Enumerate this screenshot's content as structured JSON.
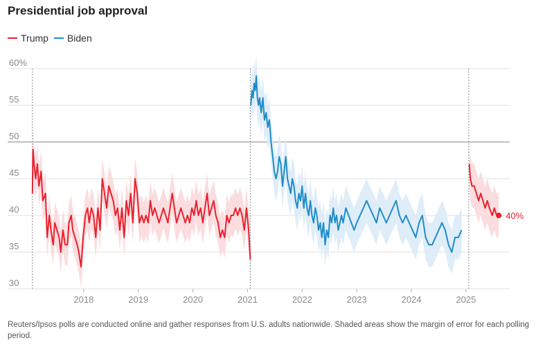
{
  "chart_data": {
    "type": "line",
    "title": "Presidential job approval",
    "xlabel": "",
    "ylabel": "",
    "xlim": [
      2017.05,
      2025.8
    ],
    "ylim": [
      30,
      60
    ],
    "x_ticks": [
      2018,
      2019,
      2020,
      2021,
      2022,
      2023,
      2024,
      2025
    ],
    "x_tick_labels": [
      "2018",
      "2019",
      "2020",
      "2021",
      "2022",
      "2023",
      "2024",
      "2025"
    ],
    "y_ticks": [
      30,
      35,
      40,
      45,
      50,
      55,
      60
    ],
    "y_tick_labels": [
      "30",
      "35",
      "40",
      "45",
      "50",
      "55",
      "60%"
    ],
    "reference_lines": {
      "dashed_x": [
        2017.06,
        2021.05,
        2025.05
      ],
      "solid_y": [
        50
      ]
    },
    "grid": true,
    "legend_position": "top-left",
    "series": [
      {
        "name": "Trump",
        "color": "#e8212f",
        "band_color": "#fbd9dc",
        "margin": 2.8,
        "points": [
          [
            2017.06,
            43
          ],
          [
            2017.07,
            49
          ],
          [
            2017.09,
            47
          ],
          [
            2017.12,
            45
          ],
          [
            2017.15,
            47
          ],
          [
            2017.18,
            44
          ],
          [
            2017.22,
            46
          ],
          [
            2017.25,
            42
          ],
          [
            2017.3,
            43
          ],
          [
            2017.33,
            37
          ],
          [
            2017.37,
            40
          ],
          [
            2017.4,
            38
          ],
          [
            2017.44,
            36
          ],
          [
            2017.47,
            39
          ],
          [
            2017.51,
            38
          ],
          [
            2017.55,
            37
          ],
          [
            2017.58,
            35
          ],
          [
            2017.62,
            38
          ],
          [
            2017.66,
            36
          ],
          [
            2017.7,
            36
          ],
          [
            2017.73,
            39
          ],
          [
            2017.77,
            40
          ],
          [
            2017.8,
            38
          ],
          [
            2017.84,
            37
          ],
          [
            2017.88,
            36
          ],
          [
            2017.91,
            35
          ],
          [
            2017.95,
            33
          ],
          [
            2017.99,
            37
          ],
          [
            2018.03,
            40
          ],
          [
            2018.07,
            41
          ],
          [
            2018.1,
            39
          ],
          [
            2018.14,
            41
          ],
          [
            2018.18,
            40
          ],
          [
            2018.22,
            37
          ],
          [
            2018.26,
            41
          ],
          [
            2018.3,
            38
          ],
          [
            2018.34,
            45
          ],
          [
            2018.38,
            43
          ],
          [
            2018.42,
            41
          ],
          [
            2018.46,
            44
          ],
          [
            2018.5,
            43
          ],
          [
            2018.54,
            42
          ],
          [
            2018.58,
            40
          ],
          [
            2018.62,
            41
          ],
          [
            2018.66,
            38
          ],
          [
            2018.7,
            41
          ],
          [
            2018.74,
            37
          ],
          [
            2018.78,
            42
          ],
          [
            2018.82,
            40
          ],
          [
            2018.86,
            43
          ],
          [
            2018.9,
            39
          ],
          [
            2018.94,
            45
          ],
          [
            2018.98,
            43
          ],
          [
            2019.02,
            39
          ],
          [
            2019.06,
            40
          ],
          [
            2019.1,
            39
          ],
          [
            2019.14,
            40
          ],
          [
            2019.18,
            39
          ],
          [
            2019.22,
            42
          ],
          [
            2019.26,
            40
          ],
          [
            2019.3,
            41
          ],
          [
            2019.34,
            40
          ],
          [
            2019.38,
            39
          ],
          [
            2019.42,
            40
          ],
          [
            2019.46,
            41
          ],
          [
            2019.5,
            40
          ],
          [
            2019.54,
            39
          ],
          [
            2019.58,
            41
          ],
          [
            2019.62,
            43
          ],
          [
            2019.66,
            41
          ],
          [
            2019.7,
            39
          ],
          [
            2019.74,
            40
          ],
          [
            2019.78,
            41
          ],
          [
            2019.82,
            40
          ],
          [
            2019.86,
            39
          ],
          [
            2019.9,
            40
          ],
          [
            2019.94,
            39
          ],
          [
            2019.98,
            41
          ],
          [
            2020.02,
            40
          ],
          [
            2020.06,
            42
          ],
          [
            2020.1,
            40
          ],
          [
            2020.14,
            41
          ],
          [
            2020.18,
            39
          ],
          [
            2020.22,
            41
          ],
          [
            2020.26,
            43
          ],
          [
            2020.3,
            40
          ],
          [
            2020.34,
            41
          ],
          [
            2020.38,
            42
          ],
          [
            2020.42,
            40
          ],
          [
            2020.46,
            39
          ],
          [
            2020.5,
            37
          ],
          [
            2020.54,
            38
          ],
          [
            2020.58,
            37
          ],
          [
            2020.62,
            40
          ],
          [
            2020.66,
            39
          ],
          [
            2020.7,
            40
          ],
          [
            2020.74,
            40
          ],
          [
            2020.78,
            41
          ],
          [
            2020.82,
            40
          ],
          [
            2020.86,
            41
          ],
          [
            2020.9,
            40
          ],
          [
            2020.94,
            38
          ],
          [
            2020.98,
            41
          ],
          [
            2021.02,
            38
          ],
          [
            2021.05,
            34
          ]
        ]
      },
      {
        "name": "Biden",
        "color": "#1e8cc8",
        "band_color": "#dcebf7",
        "margin": 3,
        "points": [
          [
            2021.06,
            55
          ],
          [
            2021.08,
            57
          ],
          [
            2021.1,
            56
          ],
          [
            2021.12,
            58
          ],
          [
            2021.14,
            57
          ],
          [
            2021.16,
            59
          ],
          [
            2021.18,
            56
          ],
          [
            2021.2,
            55
          ],
          [
            2021.22,
            56
          ],
          [
            2021.25,
            54
          ],
          [
            2021.28,
            56
          ],
          [
            2021.31,
            53
          ],
          [
            2021.34,
            54
          ],
          [
            2021.37,
            52
          ],
          [
            2021.4,
            53
          ],
          [
            2021.43,
            50
          ],
          [
            2021.46,
            48
          ],
          [
            2021.49,
            46
          ],
          [
            2021.52,
            45
          ],
          [
            2021.55,
            46
          ],
          [
            2021.58,
            48
          ],
          [
            2021.61,
            47
          ],
          [
            2021.64,
            44
          ],
          [
            2021.67,
            46
          ],
          [
            2021.7,
            48
          ],
          [
            2021.73,
            45
          ],
          [
            2021.76,
            44
          ],
          [
            2021.79,
            43
          ],
          [
            2021.82,
            45
          ],
          [
            2021.85,
            44
          ],
          [
            2021.88,
            42
          ],
          [
            2021.91,
            41
          ],
          [
            2021.94,
            43
          ],
          [
            2021.97,
            42
          ],
          [
            2022.0,
            44
          ],
          [
            2022.03,
            41
          ],
          [
            2022.06,
            43
          ],
          [
            2022.09,
            41
          ],
          [
            2022.12,
            40
          ],
          [
            2022.15,
            42
          ],
          [
            2022.18,
            40
          ],
          [
            2022.21,
            39
          ],
          [
            2022.24,
            41
          ],
          [
            2022.27,
            40
          ],
          [
            2022.3,
            38
          ],
          [
            2022.33,
            39
          ],
          [
            2022.36,
            37
          ],
          [
            2022.39,
            39
          ],
          [
            2022.42,
            36
          ],
          [
            2022.45,
            38
          ],
          [
            2022.48,
            37
          ],
          [
            2022.51,
            40
          ],
          [
            2022.54,
            39
          ],
          [
            2022.57,
            41
          ],
          [
            2022.6,
            39
          ],
          [
            2022.63,
            40
          ],
          [
            2022.66,
            38
          ],
          [
            2022.69,
            39
          ],
          [
            2022.72,
            40
          ],
          [
            2022.75,
            39
          ],
          [
            2022.8,
            41
          ],
          [
            2022.85,
            40
          ],
          [
            2022.9,
            39
          ],
          [
            2022.95,
            38
          ],
          [
            2023.0,
            39
          ],
          [
            2023.06,
            40
          ],
          [
            2023.12,
            41
          ],
          [
            2023.18,
            42
          ],
          [
            2023.24,
            41
          ],
          [
            2023.3,
            40
          ],
          [
            2023.36,
            39
          ],
          [
            2023.42,
            41
          ],
          [
            2023.48,
            40
          ],
          [
            2023.54,
            39
          ],
          [
            2023.6,
            40
          ],
          [
            2023.66,
            41
          ],
          [
            2023.72,
            42
          ],
          [
            2023.78,
            40
          ],
          [
            2023.84,
            39
          ],
          [
            2023.9,
            40
          ],
          [
            2023.96,
            39
          ],
          [
            2024.02,
            38
          ],
          [
            2024.08,
            37
          ],
          [
            2024.14,
            39
          ],
          [
            2024.2,
            40
          ],
          [
            2024.26,
            37
          ],
          [
            2024.32,
            36
          ],
          [
            2024.38,
            36
          ],
          [
            2024.44,
            37
          ],
          [
            2024.5,
            38
          ],
          [
            2024.56,
            39
          ],
          [
            2024.62,
            38
          ],
          [
            2024.68,
            36
          ],
          [
            2024.74,
            35
          ],
          [
            2024.8,
            37
          ],
          [
            2024.86,
            37
          ],
          [
            2024.92,
            38
          ]
        ]
      },
      {
        "name": "Trump",
        "color": "#e8212f",
        "band_color": "#fbd9dc",
        "margin": 3,
        "points": [
          [
            2025.06,
            47
          ],
          [
            2025.08,
            45
          ],
          [
            2025.11,
            44
          ],
          [
            2025.15,
            44
          ],
          [
            2025.19,
            43
          ],
          [
            2025.23,
            42
          ],
          [
            2025.27,
            43
          ],
          [
            2025.31,
            42
          ],
          [
            2025.35,
            41
          ],
          [
            2025.39,
            42
          ],
          [
            2025.43,
            41
          ],
          [
            2025.48,
            40
          ],
          [
            2025.52,
            41
          ],
          [
            2025.56,
            40
          ],
          [
            2025.6,
            40
          ]
        ]
      }
    ],
    "end_label": {
      "text": "40%",
      "x": 2025.6,
      "y": 40,
      "color": "#e8212f"
    },
    "footnote": "Reuters/Ipsos polls are conducted online and gather responses from U.S. adults nationwide. Shaded areas show the margin of error for each polling period."
  }
}
